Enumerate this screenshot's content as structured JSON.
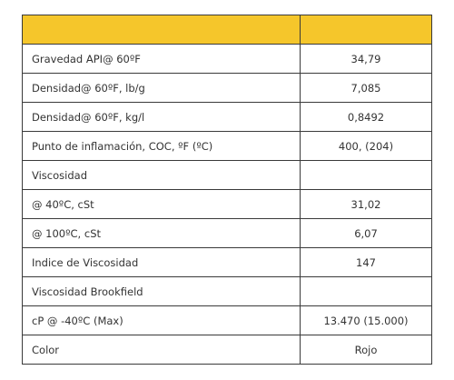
{
  "table": {
    "header": [
      "",
      ""
    ],
    "rows": [
      {
        "property": "Gravedad API@ 60ºF",
        "value": "34,79"
      },
      {
        "property": "Densidad@ 60ºF, lb/g",
        "value": "7,085"
      },
      {
        "property": "Densidad@ 60ºF, kg/l",
        "value": "0,8492"
      },
      {
        "property": "Punto de inflamación, COC, ºF (ºC)",
        "value": "400, (204)"
      },
      {
        "property": "Viscosidad",
        "value": ""
      },
      {
        "property": "@ 40ºC, cSt",
        "value": "31,02"
      },
      {
        "property": "@ 100ºC, cSt",
        "value": "6,07"
      },
      {
        "property": "Indice de Viscosidad",
        "value": "147"
      },
      {
        "property": "Viscosidad Brookfield",
        "value": ""
      },
      {
        "property": "cP @ -40ºC (Max)",
        "value": "13.470 (15.000)"
      },
      {
        "property": "Color",
        "value": "Rojo"
      }
    ]
  },
  "colors": {
    "header_background": "#f5c62b",
    "border": "#3a3a3a",
    "text": "#333333"
  }
}
